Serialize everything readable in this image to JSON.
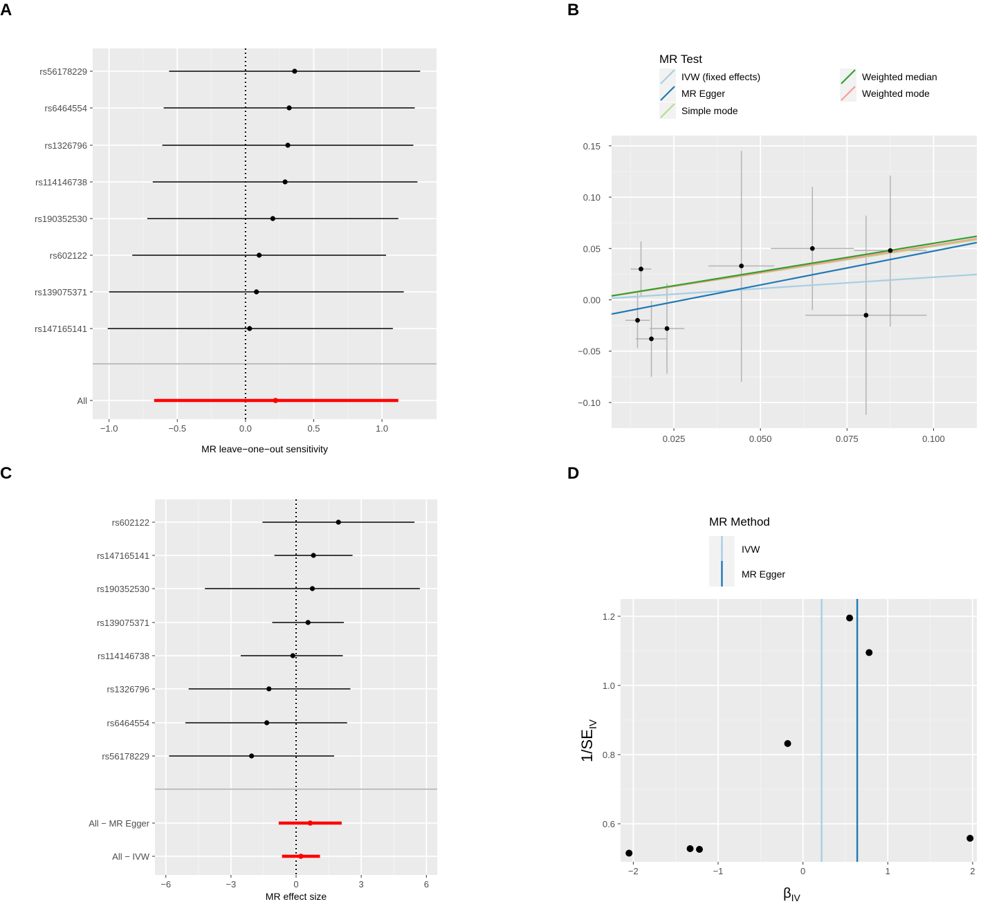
{
  "chart_data": [
    {
      "panel": "A",
      "type": "forest",
      "xlabel": "MR leave−one−out sensitivity",
      "xlim": [
        -1.12,
        1.4
      ],
      "xticks": [
        -1.0,
        -0.5,
        0.0,
        0.5,
        1.0
      ],
      "xtick_labels": [
        "−1.0",
        "−0.5",
        "0.0",
        "0.5",
        "1.0"
      ],
      "refline": 0,
      "rows": [
        {
          "label": "rs56178229",
          "est": 0.36,
          "lo": -0.56,
          "hi": 1.28
        },
        {
          "label": "rs6464554",
          "est": 0.32,
          "lo": -0.6,
          "hi": 1.24
        },
        {
          "label": "rs1326796",
          "est": 0.31,
          "lo": -0.61,
          "hi": 1.23
        },
        {
          "label": "rs114146738",
          "est": 0.29,
          "lo": -0.68,
          "hi": 1.26
        },
        {
          "label": "rs190352530",
          "est": 0.2,
          "lo": -0.72,
          "hi": 1.12
        },
        {
          "label": "rs602122",
          "est": 0.1,
          "lo": -0.83,
          "hi": 1.03
        },
        {
          "label": "rs139075371",
          "est": 0.08,
          "lo": -1.0,
          "hi": 1.16
        },
        {
          "label": "rs147165141",
          "est": 0.03,
          "lo": -1.01,
          "hi": 1.08
        }
      ],
      "summary": [
        {
          "label": "All",
          "est": 0.22,
          "lo": -0.67,
          "hi": 1.12
        }
      ]
    },
    {
      "panel": "B",
      "type": "scatter",
      "xlim": [
        0.007,
        0.1125
      ],
      "ylim": [
        -0.125,
        0.16
      ],
      "xticks": [
        0.025,
        0.05,
        0.075,
        0.1
      ],
      "xtick_labels": [
        "0.025",
        "0.050",
        "0.075",
        "0.100"
      ],
      "yticks": [
        -0.1,
        -0.05,
        0.0,
        0.05,
        0.1,
        0.15
      ],
      "ytick_labels": [
        "−0.10",
        "−0.05",
        "0.00",
        "0.05",
        "0.10",
        "0.15"
      ],
      "points": [
        {
          "x": 0.0155,
          "y": 0.03,
          "xlo": 0.0125,
          "xhi": 0.0185,
          "ylo": 0.003,
          "yhi": 0.057
        },
        {
          "x": 0.0145,
          "y": -0.02,
          "xlo": 0.011,
          "xhi": 0.018,
          "ylo": -0.047,
          "yhi": 0.007
        },
        {
          "x": 0.0185,
          "y": -0.038,
          "xlo": 0.014,
          "xhi": 0.023,
          "ylo": -0.075,
          "yhi": -0.001
        },
        {
          "x": 0.023,
          "y": -0.028,
          "xlo": 0.018,
          "xhi": 0.028,
          "ylo": -0.072,
          "yhi": 0.016
        },
        {
          "x": 0.0445,
          "y": 0.033,
          "xlo": 0.035,
          "xhi": 0.054,
          "ylo": -0.08,
          "yhi": 0.145
        },
        {
          "x": 0.065,
          "y": 0.05,
          "xlo": 0.053,
          "xhi": 0.077,
          "ylo": -0.01,
          "yhi": 0.11
        },
        {
          "x": 0.0805,
          "y": -0.015,
          "xlo": 0.063,
          "xhi": 0.098,
          "ylo": -0.112,
          "yhi": 0.082
        },
        {
          "x": 0.0875,
          "y": 0.048,
          "xlo": 0.077,
          "xhi": 0.098,
          "ylo": -0.026,
          "yhi": 0.121
        }
      ],
      "lines": [
        {
          "name": "IVW (fixed effects)",
          "color": "#a6cee3",
          "slope": 0.22,
          "intercept": 0.0
        },
        {
          "name": "MR Egger",
          "color": "#1f78b4",
          "slope": 0.66,
          "intercept": -0.0185
        },
        {
          "name": "Simple mode",
          "color": "#b2df8a",
          "slope": 0.52,
          "intercept": 0.0
        },
        {
          "name": "Weighted median",
          "color": "#33a02c",
          "slope": 0.55,
          "intercept": 0.0
        },
        {
          "name": "Weighted mode",
          "color": "#fb9a99",
          "slope": 0.53,
          "intercept": 0.0
        }
      ],
      "legend": {
        "title": "MR Test",
        "entries": [
          "IVW (fixed effects)",
          "MR Egger",
          "Simple mode",
          "Weighted median",
          "Weighted mode"
        ]
      }
    },
    {
      "panel": "C",
      "type": "forest",
      "xlabel": "MR effect size",
      "xlim": [
        -6.5,
        6.5
      ],
      "xticks": [
        -6,
        -3,
        0,
        3,
        6
      ],
      "xtick_labels": [
        "−6",
        "−3",
        "0",
        "3",
        "6"
      ],
      "refline": 0,
      "rows": [
        {
          "label": "rs602122",
          "est": 1.95,
          "lo": -1.55,
          "hi": 5.45
        },
        {
          "label": "rs147165141",
          "est": 0.8,
          "lo": -1.0,
          "hi": 2.6
        },
        {
          "label": "rs190352530",
          "est": 0.75,
          "lo": -4.2,
          "hi": 5.7
        },
        {
          "label": "rs139075371",
          "est": 0.55,
          "lo": -1.1,
          "hi": 2.2
        },
        {
          "label": "rs114146738",
          "est": -0.15,
          "lo": -2.55,
          "hi": 2.15
        },
        {
          "label": "rs1326796",
          "est": -1.25,
          "lo": -4.95,
          "hi": 2.5
        },
        {
          "label": "rs6464554",
          "est": -1.35,
          "lo": -5.1,
          "hi": 2.35
        },
        {
          "label": "rs56178229",
          "est": -2.05,
          "lo": -5.85,
          "hi": 1.75
        }
      ],
      "summary": [
        {
          "label": "All − MR Egger",
          "est": 0.65,
          "lo": -0.8,
          "hi": 2.1
        },
        {
          "label": "All − IVW",
          "est": 0.22,
          "lo": -0.65,
          "hi": 1.1
        }
      ]
    },
    {
      "panel": "D",
      "type": "funnel",
      "xlabel": "βIV",
      "ylabel": "1/SEIV",
      "xlim": [
        -2.15,
        2.05
      ],
      "ylim": [
        0.49,
        1.25
      ],
      "xticks": [
        -2,
        -1,
        0,
        1,
        2
      ],
      "xtick_labels": [
        "−2",
        "−1",
        "0",
        "1",
        "2"
      ],
      "yticks": [
        0.6,
        0.8,
        1.0,
        1.2
      ],
      "ytick_labels": [
        "0.6",
        "0.8",
        "1.0",
        "1.2"
      ],
      "points": [
        {
          "x": 0.55,
          "y": 1.195
        },
        {
          "x": 0.78,
          "y": 1.095
        },
        {
          "x": -0.18,
          "y": 0.832
        },
        {
          "x": 1.97,
          "y": 0.558
        },
        {
          "x": -1.33,
          "y": 0.528
        },
        {
          "x": -1.22,
          "y": 0.526
        },
        {
          "x": -2.05,
          "y": 0.515
        }
      ],
      "vlines": [
        {
          "name": "IVW",
          "x": 0.22,
          "color": "#a6cee3"
        },
        {
          "name": "MR Egger",
          "x": 0.64,
          "color": "#1f78b4"
        }
      ],
      "legend": {
        "title": "MR Method",
        "entries": [
          "IVW",
          "MR Egger"
        ]
      }
    }
  ],
  "panel_labels": [
    "A",
    "B",
    "C",
    "D"
  ]
}
